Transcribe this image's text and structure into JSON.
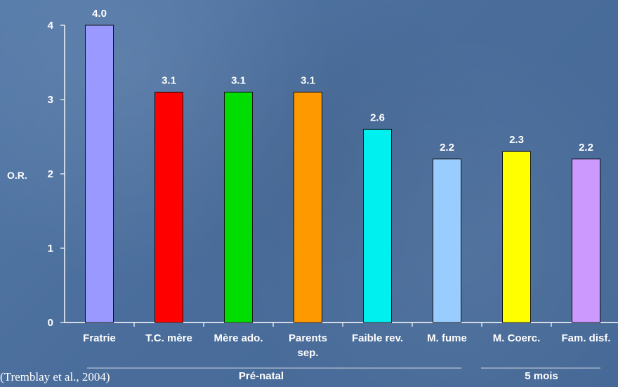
{
  "chart_data": {
    "type": "bar",
    "categories": [
      [
        "Fratrie"
      ],
      [
        "T.C. mère"
      ],
      [
        "Mère ado."
      ],
      [
        "Parents",
        "sep."
      ],
      [
        "Faible rev."
      ],
      [
        "M. fume"
      ],
      [
        "M. Coerc."
      ],
      [
        "Fam. disf."
      ]
    ],
    "values": [
      4.0,
      3.1,
      3.1,
      3.1,
      2.6,
      2.2,
      2.3,
      2.2
    ],
    "value_labels": [
      "4.0",
      "3.1",
      "3.1",
      "3.1",
      "2.6",
      "2.2",
      "2.3",
      "2.2"
    ],
    "colors": [
      "#9999ff",
      "#ff0000",
      "#00dd00",
      "#ff9900",
      "#00f0f0",
      "#99ccff",
      "#ffff00",
      "#cc99ff"
    ],
    "ylabel": "O.R.",
    "yticks": [
      0,
      1,
      2,
      3,
      4
    ],
    "ylim": [
      0,
      4
    ],
    "grid": false,
    "groups": [
      {
        "label": "Pré-natal",
        "start": 0,
        "end": 5
      },
      {
        "label": "5 mois",
        "start": 6,
        "end": 7
      }
    ]
  },
  "citation": "(Tremblay et al., 2004)"
}
